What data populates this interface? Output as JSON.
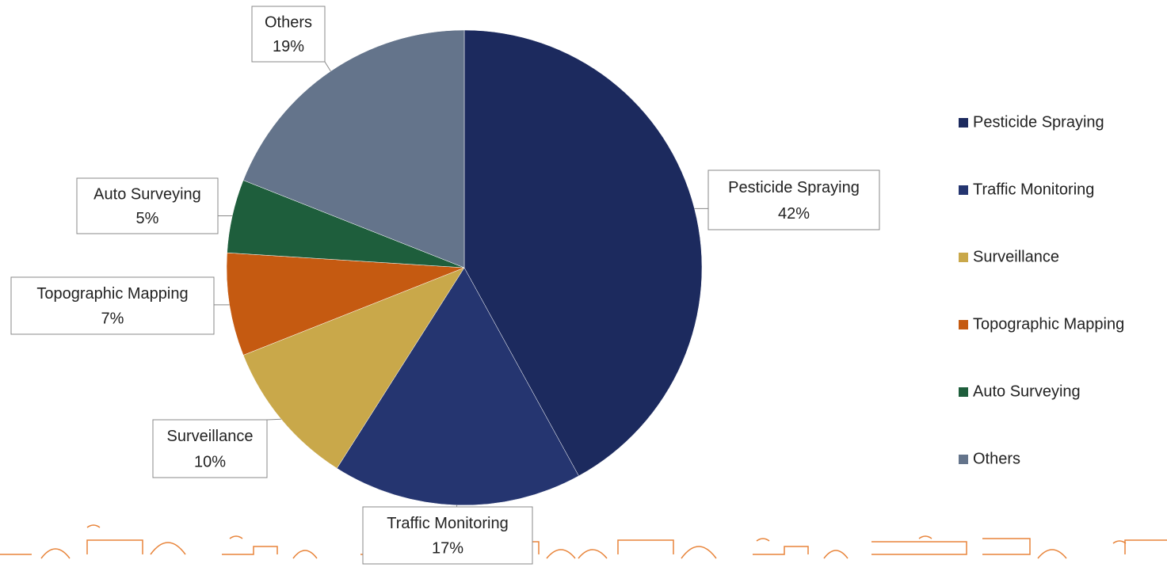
{
  "chart_data": {
    "type": "pie",
    "categories": [
      "Pesticide Spraying",
      "Traffic Monitoring",
      "Surveillance",
      "Topographic Mapping",
      "Auto Surveying",
      "Others"
    ],
    "values": [
      42,
      17,
      10,
      7,
      5,
      19
    ],
    "value_labels": [
      "42%",
      "17%",
      "10%",
      "7%",
      "5%",
      "19%"
    ],
    "colors": [
      "#1c2a5e",
      "#253570",
      "#c9a84a",
      "#c55a11",
      "#1e5e3c",
      "#64748b"
    ],
    "legend": "right"
  }
}
